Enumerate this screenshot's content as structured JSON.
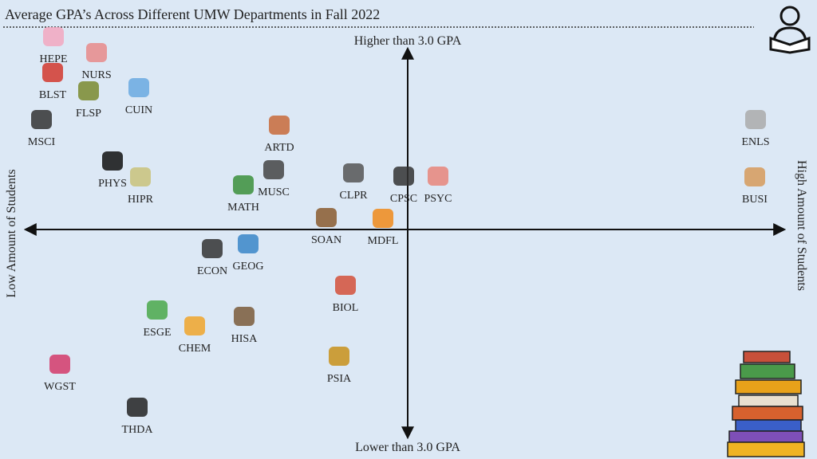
{
  "header": {
    "title": "Average GPA’s Across Different UMW Departments in Fall 2022"
  },
  "axes": {
    "top": "Higher than 3.0 GPA",
    "bottom": "Lower than 3.0 GPA",
    "left": "Low Amount of Students",
    "right": "High Amount of Students"
  },
  "nodes": [
    {
      "label": "HEPE"
    },
    {
      "label": "NURS"
    },
    {
      "label": "BLST"
    },
    {
      "label": "FLSP"
    },
    {
      "label": "CUIN"
    },
    {
      "label": "MSCI"
    },
    {
      "label": "ARTD"
    },
    {
      "label": "ENLS"
    },
    {
      "label": "PHYS"
    },
    {
      "label": "HIPR"
    },
    {
      "label": "MUSC"
    },
    {
      "label": "MATH"
    },
    {
      "label": "CLPR"
    },
    {
      "label": "CPSC"
    },
    {
      "label": "PSYC"
    },
    {
      "label": "BUSI"
    },
    {
      "label": "SOAN"
    },
    {
      "label": "MDFL"
    },
    {
      "label": "ECON"
    },
    {
      "label": "GEOG"
    },
    {
      "label": "BIOL"
    },
    {
      "label": "ESGE"
    },
    {
      "label": "CHEM"
    },
    {
      "label": "HISA"
    },
    {
      "label": "PSIA"
    },
    {
      "label": "WGST"
    },
    {
      "label": "THDA"
    }
  ]
}
